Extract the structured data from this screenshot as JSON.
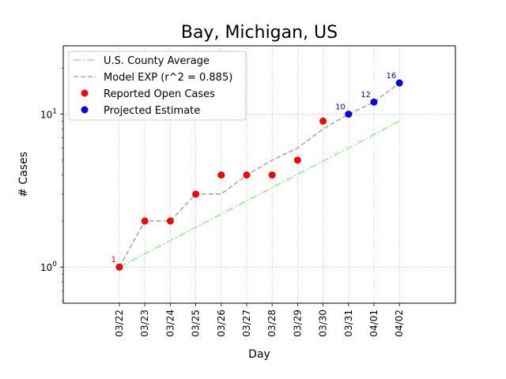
{
  "chart_data": {
    "type": "line",
    "title": "Bay, Michigan, US",
    "xlabel": "Day",
    "ylabel": "# Cases",
    "yscale": "log",
    "ylim": [
      0.58,
      28
    ],
    "yticks": [
      {
        "value": 1,
        "label": "10^0"
      },
      {
        "value": 10,
        "label": "10^1"
      }
    ],
    "grid": true,
    "legend_position": "top-left",
    "categories": [
      "03/22",
      "03/23",
      "03/24",
      "03/25",
      "03/26",
      "03/27",
      "03/28",
      "03/29",
      "03/30",
      "03/31",
      "04/01",
      "04/02"
    ],
    "series": [
      {
        "name": "U.S. County Average",
        "style": "dashdot",
        "color": "#90ee90",
        "values": [
          1,
          1.22,
          1.49,
          1.82,
          2.22,
          2.71,
          3.31,
          4.04,
          4.93,
          6.02,
          7.35,
          9.0
        ]
      },
      {
        "name": "Model EXP (r^2 = 0.885)",
        "style": "dashed",
        "color": "#a9a9a9",
        "values": [
          1,
          2,
          2,
          3,
          3,
          4,
          5,
          6,
          8,
          10,
          12,
          16
        ]
      },
      {
        "name": "Reported Open Cases",
        "style": "marker",
        "color": "#ff0000",
        "values": [
          1,
          2,
          2,
          3,
          4,
          4,
          4,
          5,
          9,
          null,
          null,
          null
        ]
      },
      {
        "name": "Projected Estimate",
        "style": "marker",
        "color": "#0000ff",
        "values": [
          null,
          null,
          null,
          null,
          null,
          null,
          null,
          null,
          null,
          10,
          12,
          16
        ]
      }
    ],
    "annotations": [
      {
        "category": "03/22",
        "value": 1,
        "text": "1",
        "color": "#ff0000"
      },
      {
        "category": "03/31",
        "value": 10,
        "text": "10",
        "color": "#0000ff"
      },
      {
        "category": "04/01",
        "value": 12,
        "text": "12",
        "color": "#0000ff"
      },
      {
        "category": "04/02",
        "value": 16,
        "text": "16",
        "color": "#0000ff"
      }
    ]
  }
}
